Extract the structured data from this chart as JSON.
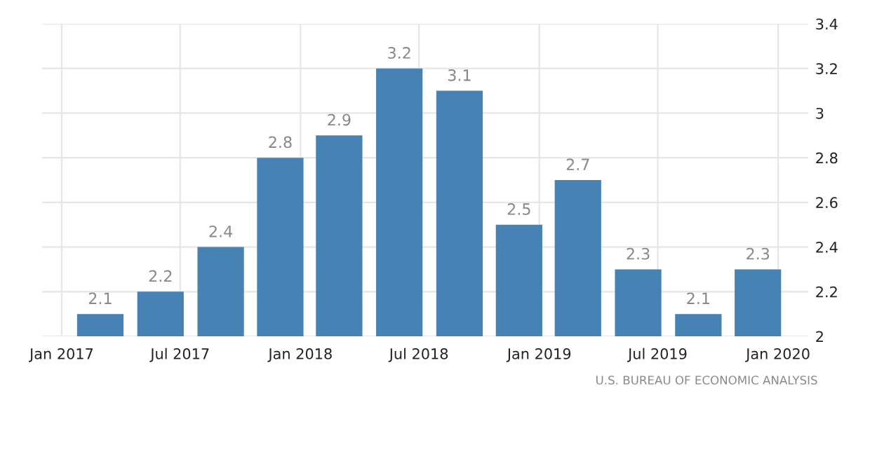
{
  "chart_data": {
    "type": "bar",
    "x": [
      "2017-03-01",
      "2017-06-01",
      "2017-09-01",
      "2017-12-01",
      "2018-03-01",
      "2018-06-01",
      "2018-09-01",
      "2018-12-01",
      "2019-03-01",
      "2019-06-01",
      "2019-09-01",
      "2019-12-01"
    ],
    "values": [
      2.1,
      2.2,
      2.4,
      2.8,
      2.9,
      3.2,
      3.1,
      2.5,
      2.7,
      2.3,
      2.1,
      2.3
    ],
    "color": "#4682b4",
    "data_labels": true,
    "xlim": [
      "2016-12-02",
      "2020-02-16"
    ],
    "xticks": [
      {
        "value": "2017-01-01",
        "label": "Jan 2017"
      },
      {
        "value": "2017-07-01",
        "label": "Jul 2017"
      },
      {
        "value": "2018-01-01",
        "label": "Jan 2018"
      },
      {
        "value": "2018-07-01",
        "label": "Jul 2018"
      },
      {
        "value": "2019-01-01",
        "label": "Jan 2019"
      },
      {
        "value": "2019-07-01",
        "label": "Jul 2019"
      },
      {
        "value": "2020-01-01",
        "label": "Jan 2020"
      }
    ],
    "ylim": [
      2,
      3.4
    ],
    "yticks": [
      2,
      2.2,
      2.4,
      2.6,
      2.8,
      3,
      3.2,
      3.4
    ],
    "grid": true,
    "annotations": [
      "U.S. BUREAU OF ECONOMIC ANALYSIS"
    ]
  }
}
